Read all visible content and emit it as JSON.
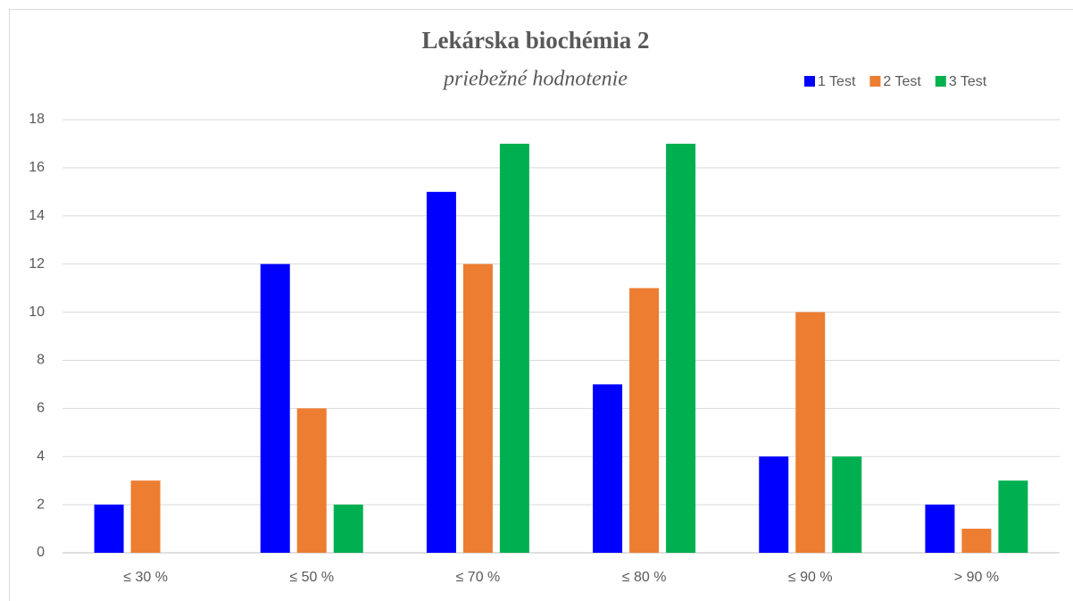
{
  "chart_data": {
    "type": "bar",
    "title": "Lekárska biochémia 2",
    "subtitle": "priebežné hodnotenie",
    "categories": [
      "≤ 30 %",
      "≤ 50 %",
      "≤ 70 %",
      "≤ 80 %",
      "≤ 90 %",
      "> 90 %"
    ],
    "series": [
      {
        "name": "1 Test",
        "color": "#0000ff",
        "values": [
          2,
          12,
          15,
          7,
          4,
          2
        ]
      },
      {
        "name": "2 Test",
        "color": "#ed7d31",
        "values": [
          3,
          6,
          12,
          11,
          10,
          1
        ]
      },
      {
        "name": "3 Test",
        "color": "#00b050",
        "values": [
          0,
          2,
          17,
          17,
          4,
          3
        ]
      }
    ],
    "ylim": [
      0,
      18
    ],
    "yticks": [
      0,
      2,
      4,
      6,
      8,
      10,
      12,
      14,
      16,
      18
    ],
    "grid": true,
    "legend": "top-right"
  }
}
